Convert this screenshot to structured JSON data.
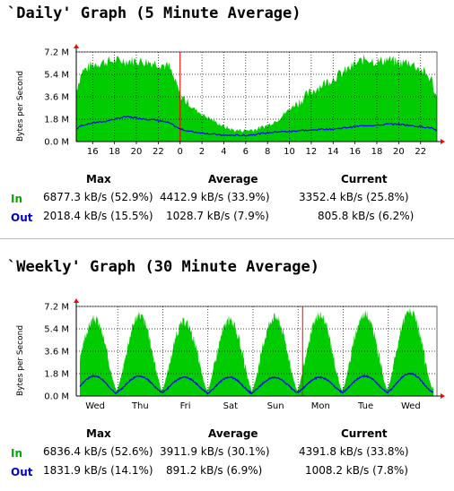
{
  "daily": {
    "title": "`Daily' Graph (5 Minute Average)",
    "y_axis_label": "Bytes per Second",
    "y_ticks": [
      "7.2 M",
      "5.4 M",
      "3.6 M",
      "1.8 M",
      "0.0 M"
    ],
    "x_ticks": [
      "16",
      "18",
      "20",
      "22",
      "0",
      "2",
      "4",
      "6",
      "8",
      "10",
      "12",
      "14",
      "16",
      "18",
      "20",
      "22"
    ],
    "stats": {
      "headers": [
        "Max",
        "Average",
        "Current"
      ],
      "rows": [
        {
          "label": "In",
          "max": "6877.3 kB/s (52.9%)",
          "average": "4412.9 kB/s (33.9%)",
          "current": "3352.4 kB/s (25.8%)"
        },
        {
          "label": "Out",
          "max": "2018.4 kB/s (15.5%)",
          "average": "1028.7 kB/s (7.9%)",
          "current": "805.8 kB/s (6.2%)"
        }
      ]
    }
  },
  "weekly": {
    "title": "`Weekly' Graph (30 Minute Average)",
    "y_axis_label": "Bytes per Second",
    "y_ticks": [
      "7.2 M",
      "5.4 M",
      "3.6 M",
      "1.8 M",
      "0.0 M"
    ],
    "x_ticks": [
      "Wed",
      "Thu",
      "Fri",
      "Sat",
      "Sun",
      "Mon",
      "Tue",
      "Wed"
    ],
    "stats": {
      "headers": [
        "Max",
        "Average",
        "Current"
      ],
      "rows": [
        {
          "label": "In",
          "max": "6836.4 kB/s (52.6%)",
          "average": "3911.9 kB/s (30.1%)",
          "current": "4391.8 kB/s (33.8%)"
        },
        {
          "label": "Out",
          "max": "1831.9 kB/s (14.1%)",
          "average": "891.2 kB/s (6.9%)",
          "current": "1008.2 kB/s (7.8%)"
        }
      ]
    }
  },
  "colors": {
    "in": "#00cc00",
    "out": "#0000ff",
    "grid": "#000000",
    "marker": "#ff0000",
    "in_text": "#00aa00",
    "out_text": "#0000cc"
  },
  "chart_data": [
    {
      "type": "area",
      "ylabel": "Bytes per Second",
      "ylim": [
        0,
        7.2
      ],
      "y_unit": "M",
      "x_ticks": [
        "16",
        "18",
        "20",
        "22",
        "0",
        "2",
        "4",
        "6",
        "8",
        "10",
        "12",
        "14",
        "16",
        "18",
        "20",
        "22"
      ],
      "x_hours": [
        14.5,
        15,
        16,
        17,
        18,
        19,
        20,
        21,
        22,
        23,
        24,
        25,
        26,
        27,
        28,
        29,
        30,
        31,
        32,
        33,
        34,
        35,
        36,
        37,
        38,
        39,
        40,
        41,
        42,
        43,
        44,
        45,
        46,
        47,
        47.5
      ],
      "series": [
        {
          "name": "In",
          "values": [
            4.2,
            5.6,
            6.2,
            6.4,
            6.5,
            6.5,
            6.5,
            6.4,
            6.3,
            6.0,
            3.8,
            2.8,
            2.2,
            1.7,
            1.2,
            0.9,
            0.9,
            1.0,
            1.3,
            1.8,
            2.6,
            3.3,
            4.0,
            4.6,
            5.1,
            5.6,
            6.2,
            6.7,
            6.4,
            6.6,
            6.3,
            6.4,
            5.8,
            5.0,
            3.4
          ]
        },
        {
          "name": "Out",
          "values": [
            1.0,
            1.3,
            1.5,
            1.6,
            1.8,
            2.0,
            1.9,
            1.8,
            1.7,
            1.5,
            1.0,
            0.8,
            0.7,
            0.6,
            0.5,
            0.5,
            0.5,
            0.6,
            0.7,
            0.8,
            0.8,
            0.9,
            0.9,
            1.0,
            1.0,
            1.1,
            1.2,
            1.3,
            1.3,
            1.4,
            1.4,
            1.3,
            1.2,
            1.1,
            0.8
          ]
        }
      ]
    },
    {
      "type": "area",
      "ylabel": "Bytes per Second",
      "ylim": [
        0,
        7.2
      ],
      "y_unit": "M",
      "x_ticks": [
        "Wed",
        "Thu",
        "Fri",
        "Sat",
        "Sun",
        "Mon",
        "Tue",
        "Wed"
      ],
      "x_day_peaks": [
        0.4,
        1.4,
        2.4,
        3.4,
        4.4,
        5.4,
        6.4,
        7.4
      ],
      "series": [
        {
          "name": "In",
          "daily_peak": [
            6.2,
            6.5,
            6.0,
            6.1,
            6.4,
            6.5,
            6.6,
            6.8
          ],
          "daily_trough": [
            0.4,
            0.5,
            0.5,
            0.4,
            0.5,
            0.4,
            0.5,
            0.6
          ]
        },
        {
          "name": "Out",
          "daily_peak": [
            1.6,
            1.6,
            1.5,
            1.5,
            1.5,
            1.5,
            1.6,
            1.8
          ],
          "daily_trough": [
            0.2,
            0.3,
            0.3,
            0.2,
            0.3,
            0.3,
            0.3,
            0.3
          ]
        }
      ]
    }
  ]
}
